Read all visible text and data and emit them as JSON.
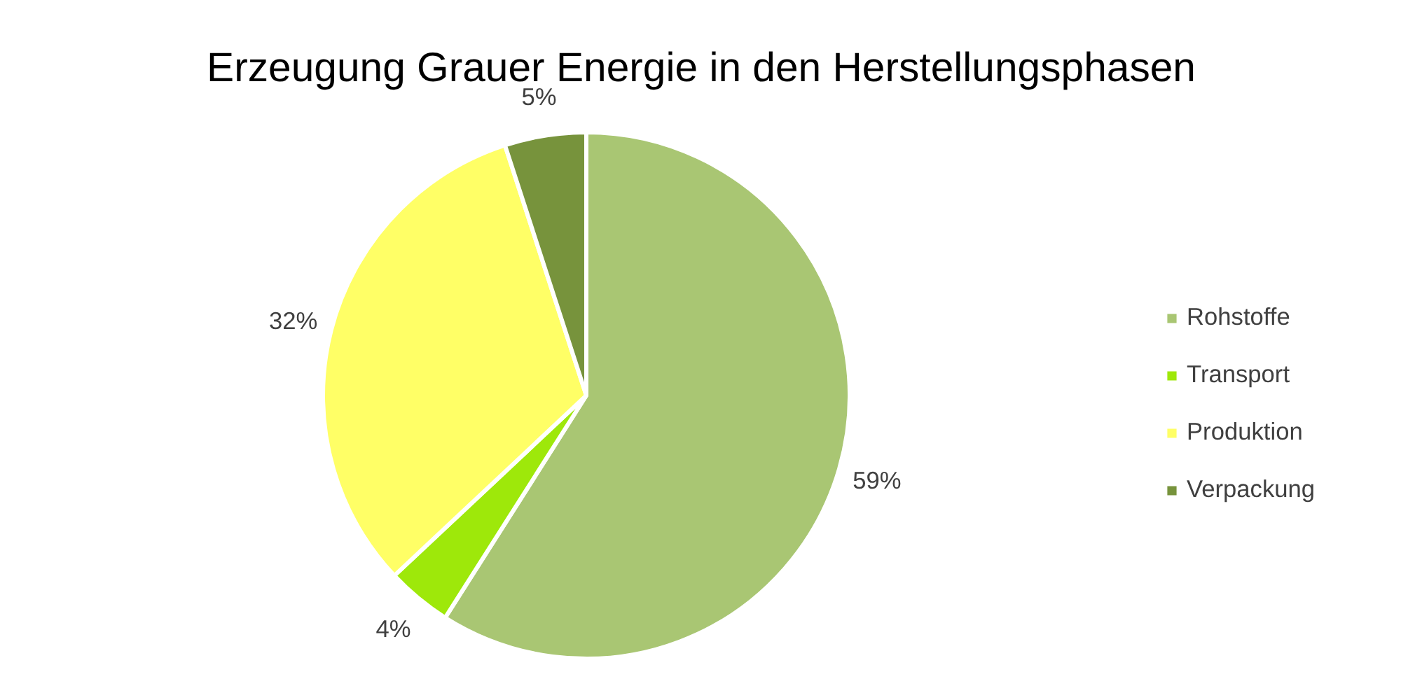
{
  "chart_data": {
    "type": "pie",
    "title": "Erzeugung Grauer Energie in den Herstellungsphasen",
    "categories": [
      "Rohstoffe",
      "Transport",
      "Produktion",
      "Verpackung"
    ],
    "values": [
      59,
      4,
      32,
      5
    ],
    "colors": [
      "#a9c673",
      "#9ee80a",
      "#ffff66",
      "#77933c"
    ],
    "value_labels": [
      "59%",
      "4%",
      "32%",
      "5%"
    ],
    "legend": "right"
  }
}
